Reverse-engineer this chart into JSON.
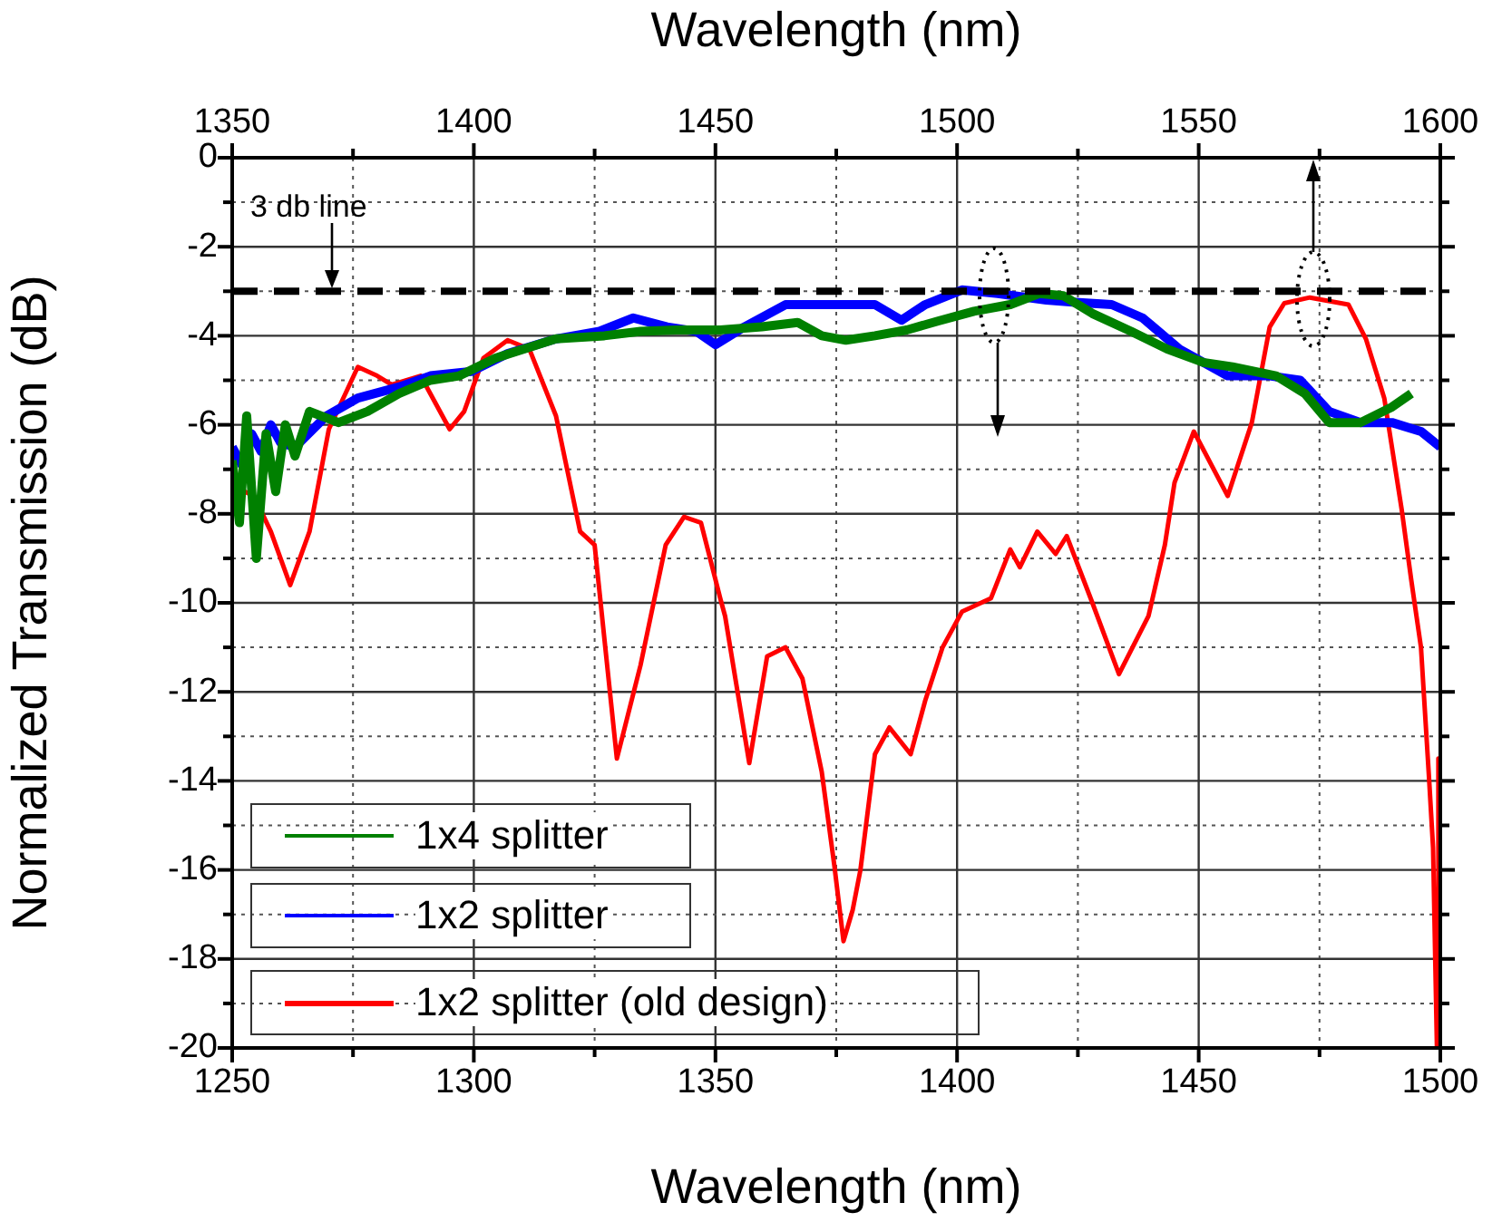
{
  "chart_data": {
    "type": "line",
    "xlabel": "Wavelength (nm)",
    "ylabel": "Normalized Transmission (dB)",
    "x2label": "Wavelength (nm)",
    "xlim": [
      1250,
      1500
    ],
    "ylim": [
      -20,
      0
    ],
    "x2lim": [
      1350,
      1600
    ],
    "xticks": [
      1250,
      {
        "value": 1275,
        "label": null
      },
      1300,
      {
        "value": 1325,
        "label": null
      },
      1350,
      {
        "value": 1375,
        "label": null
      },
      1400,
      {
        "value": 1425,
        "label": null
      },
      1450,
      {
        "value": 1475,
        "label": null
      },
      1500
    ],
    "x2ticks": [
      1350,
      {
        "value": 1375,
        "label": null
      },
      1400,
      {
        "value": 1425,
        "label": null
      },
      1450,
      {
        "value": 1475,
        "label": null
      },
      1500,
      {
        "value": 1525,
        "label": null
      },
      1550,
      {
        "value": 1575,
        "label": null
      },
      1600
    ],
    "yticks": [
      0,
      {
        "value": -1,
        "label": null
      },
      -2,
      {
        "value": -3,
        "label": null
      },
      -4,
      {
        "value": -5,
        "label": null
      },
      -6,
      {
        "value": -7,
        "label": null
      },
      -8,
      {
        "value": -9,
        "label": null
      },
      -10,
      {
        "value": -11,
        "label": null
      },
      -12,
      {
        "value": -13,
        "label": null
      },
      -14,
      {
        "value": -15,
        "label": null
      },
      -16,
      {
        "value": -17,
        "label": null
      },
      -18,
      {
        "value": -19,
        "label": null
      },
      -20
    ],
    "grid": true,
    "legend": "bottom left",
    "marker": "none",
    "line_style": "solid",
    "ref_lines": [
      {
        "axis": "y",
        "value": -3,
        "label": "3 db line",
        "color": "#000000",
        "line_style": "dashed"
      }
    ],
    "series": [
      {
        "name": "1x4 splitter",
        "color": "#008000",
        "x": [
          1250,
          1251.5,
          1253,
          1255,
          1257,
          1259,
          1261,
          1263,
          1266,
          1272,
          1278,
          1284.5,
          1291,
          1297,
          1304.5,
          1317,
          1327,
          1334.5,
          1342,
          1351,
          1359.6,
          1367,
          1372,
          1377,
          1383,
          1389.6,
          1396,
          1403.5,
          1411,
          1417,
          1422,
          1428,
          1436,
          1443.5,
          1451,
          1457,
          1466,
          1472,
          1477,
          1483.5,
          1490,
          1494
        ],
        "values": [
          -6.8,
          -8.2,
          -5.8,
          -9.0,
          -6.2,
          -7.5,
          -6.0,
          -6.7,
          -5.7,
          -5.95,
          -5.7,
          -5.3,
          -5.0,
          -4.9,
          -4.5,
          -4.07,
          -4.0,
          -3.9,
          -3.87,
          -3.87,
          -3.8,
          -3.7,
          -4.0,
          -4.1,
          -4.0,
          -3.87,
          -3.67,
          -3.45,
          -3.3,
          -3.05,
          -3.1,
          -3.5,
          -3.9,
          -4.3,
          -4.6,
          -4.7,
          -4.9,
          -5.3,
          -5.95,
          -5.95,
          -5.6,
          -5.3
        ]
      },
      {
        "name": "1x2 splitter",
        "color": "#0000ff",
        "x": [
          1250,
          1252,
          1254,
          1256,
          1258,
          1260,
          1263,
          1269.5,
          1276,
          1284.5,
          1291,
          1299.5,
          1307,
          1317,
          1326,
          1333,
          1340,
          1346,
          1350,
          1356,
          1364.5,
          1371,
          1378.4,
          1383,
          1388.5,
          1393.4,
          1401,
          1408.4,
          1418.5,
          1424.5,
          1432,
          1438.4,
          1446,
          1456,
          1464.7,
          1471,
          1477,
          1483.5,
          1490,
          1496,
          1500
        ],
        "values": [
          -6.5,
          -6.9,
          -6.2,
          -6.6,
          -6.0,
          -6.4,
          -6.5,
          -5.8,
          -5.4,
          -5.15,
          -4.9,
          -4.8,
          -4.4,
          -4.07,
          -3.9,
          -3.6,
          -3.8,
          -3.9,
          -4.2,
          -3.8,
          -3.3,
          -3.3,
          -3.3,
          -3.3,
          -3.65,
          -3.3,
          -2.97,
          -3.05,
          -3.2,
          -3.25,
          -3.3,
          -3.6,
          -4.3,
          -4.9,
          -4.9,
          -5.0,
          -5.7,
          -5.95,
          -5.95,
          -6.15,
          -6.5
        ]
      },
      {
        "name": "1x2 splitter (old design)",
        "color": "#ff0000",
        "x": [
          1250,
          1252.6,
          1254.5,
          1258,
          1262,
          1266,
          1270,
          1276,
          1280,
          1283,
          1289,
          1291,
          1295,
          1298,
          1302,
          1307,
          1311.5,
          1317,
          1322,
          1325,
          1329.6,
          1334.5,
          1339.7,
          1343.5,
          1347,
          1351,
          1352,
          1357,
          1360.7,
          1364.5,
          1368,
          1372,
          1374.6,
          1376.5,
          1378.4,
          1380,
          1383,
          1386,
          1390.4,
          1393.4,
          1397,
          1401,
          1407,
          1411,
          1413,
          1416.6,
          1420.4,
          1422.7,
          1428,
          1433.5,
          1439.6,
          1443,
          1445,
          1449,
          1456,
          1461,
          1464.7,
          1467.7,
          1473,
          1481,
          1484.6,
          1488.4,
          1492,
          1494,
          1496,
          1497.7,
          1498.5,
          1499.3,
          1499.6,
          1500
        ],
        "values": [
          -8.0,
          -7.5,
          -7.6,
          -8.4,
          -9.6,
          -8.4,
          -6.1,
          -4.7,
          -4.9,
          -5.1,
          -4.9,
          -5.3,
          -6.1,
          -5.7,
          -4.5,
          -4.1,
          -4.3,
          -5.8,
          -8.4,
          -8.7,
          -13.5,
          -11.4,
          -8.7,
          -8.07,
          -8.2,
          -9.9,
          -10.3,
          -13.6,
          -11.2,
          -11.0,
          -11.7,
          -13.8,
          -15.9,
          -17.6,
          -16.9,
          -16.0,
          -13.4,
          -12.8,
          -13.4,
          -12.2,
          -11.0,
          -10.2,
          -9.9,
          -8.8,
          -9.2,
          -8.4,
          -8.9,
          -8.5,
          -10.0,
          -11.6,
          -10.3,
          -8.7,
          -7.3,
          -6.15,
          -7.6,
          -5.95,
          -3.8,
          -3.27,
          -3.14,
          -3.3,
          -4.07,
          -5.4,
          -7.9,
          -9.5,
          -11.0,
          -14.0,
          -15.5,
          -20,
          -13.5,
          -20
        ]
      }
    ]
  }
}
